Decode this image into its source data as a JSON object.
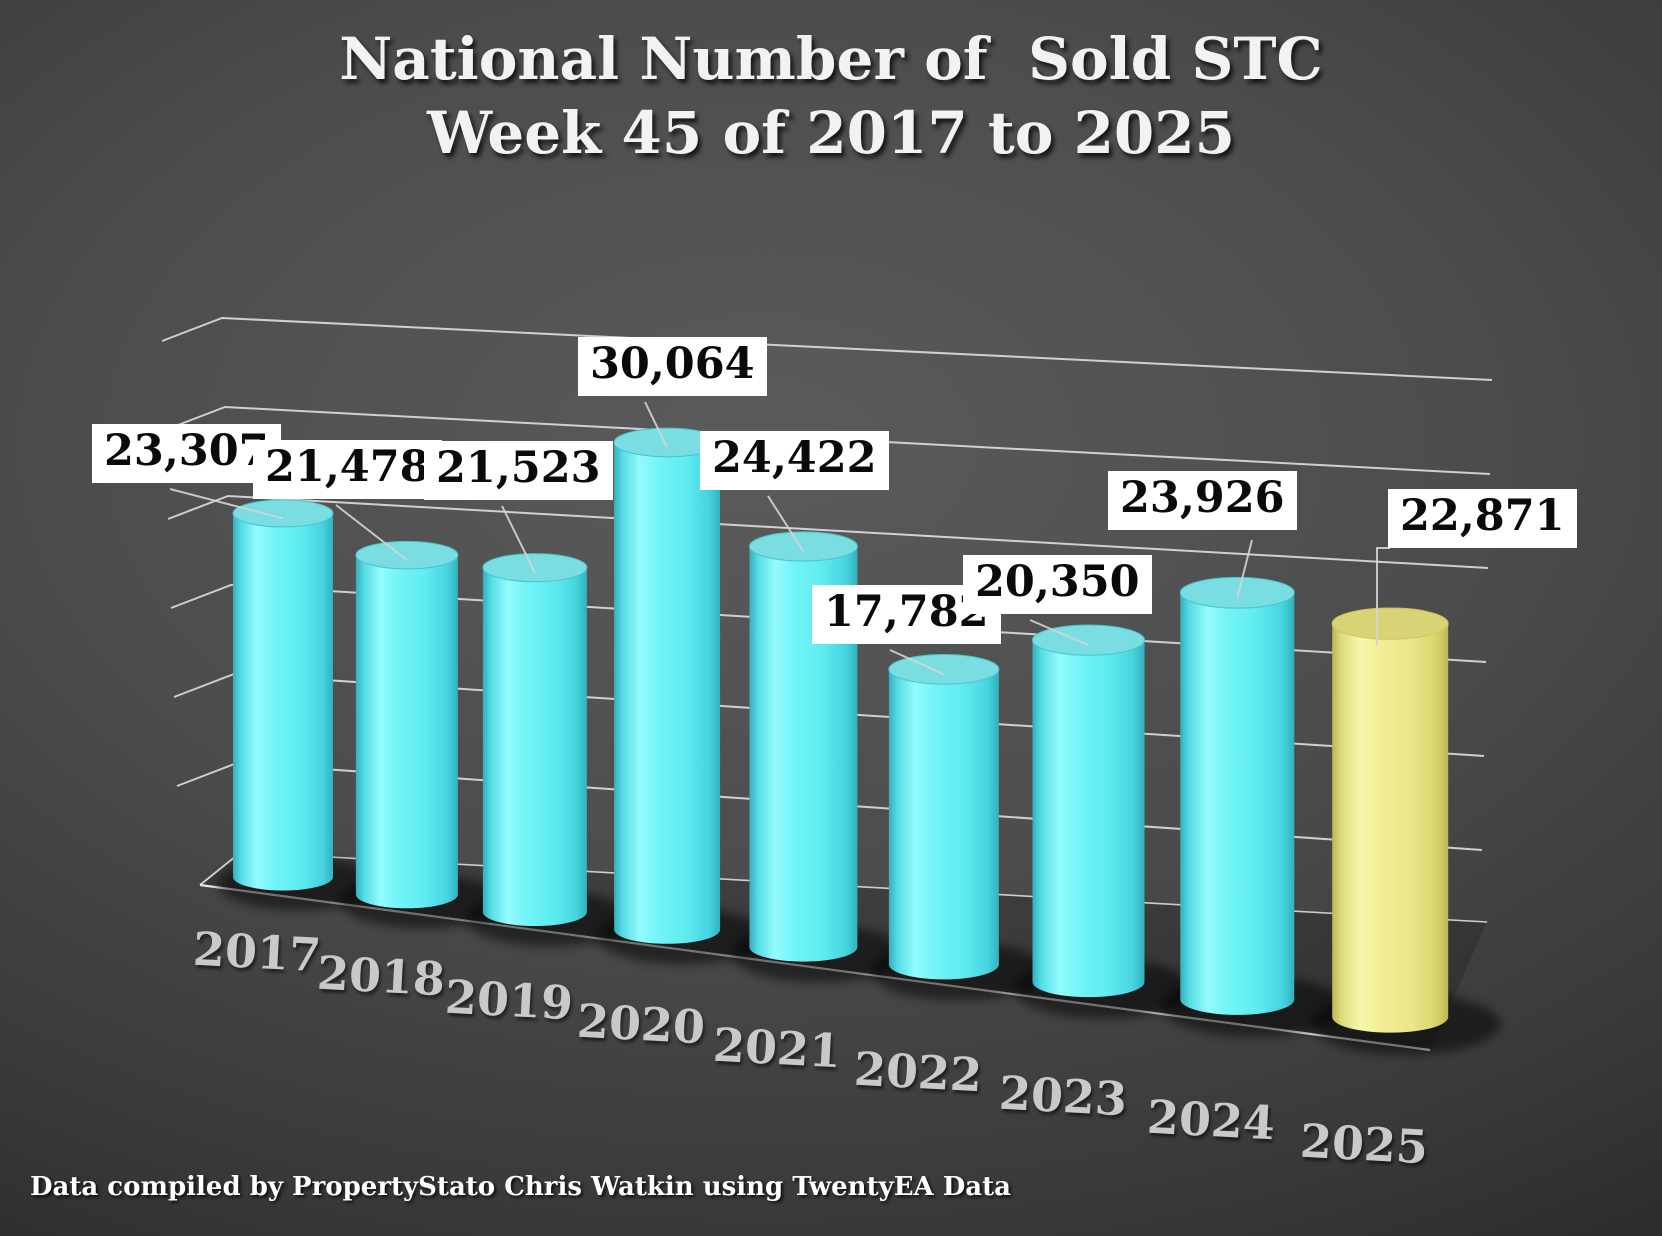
{
  "slide": {
    "title_line1": "National Number of  Sold STC",
    "title_line2": "Week 45 of 2017 to 2025",
    "footer": "Data compiled by PropertyStato Chris Watkin using TwentyEA Data"
  },
  "chart_data": {
    "type": "bar",
    "render_style": "3d-cylinder",
    "title": "National Number of  Sold STC Week 45 of 2017 to 2025",
    "categories": [
      "2017",
      "2018",
      "2019",
      "2020",
      "2021",
      "2022",
      "2023",
      "2024",
      "2025"
    ],
    "series": [
      {
        "name": "National number of Sold STC in week 45",
        "values": [
          23307,
          21478,
          21523,
          30064,
          24422,
          17782,
          20350,
          23926,
          22871
        ]
      }
    ],
    "value_labels": [
      "23,307",
      "21,478",
      "21,523",
      "30,064",
      "24,422",
      "17,782",
      "20,350",
      "23,926",
      "22,871"
    ],
    "highlight_category": "2025",
    "legend": "none",
    "gridlines": true,
    "xlabel": "",
    "ylabel": "",
    "colors": {
      "bar": "#5fe9ee",
      "bar_top": "#79dde2",
      "highlight_bar": "#efec8e",
      "highlight_top": "#d8d476",
      "label_box_bg": "#ffffff",
      "label_text": "#000000",
      "gridline": "#e6e6e6",
      "category_text": "#c9c9c9",
      "title_text": "#f2f2f2",
      "footer_text": "#ffffff"
    }
  }
}
